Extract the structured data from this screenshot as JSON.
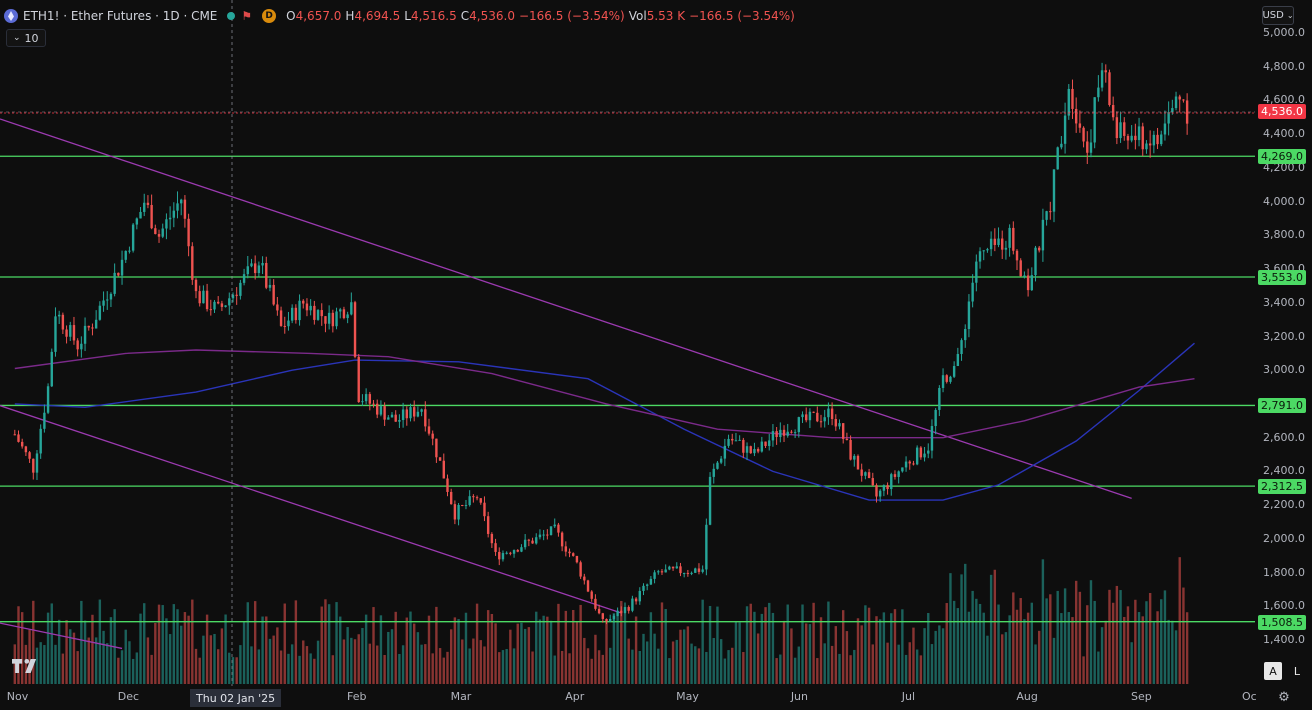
{
  "header": {
    "symbol_title": "ETH1! · Ether Futures · 1D · CME",
    "flag_label": "⚑",
    "d_badge": "D",
    "ohlc": [
      {
        "k": "O",
        "v": "4,657.0"
      },
      {
        "k": "H",
        "v": "4,694.5"
      },
      {
        "k": "L",
        "v": "4,516.5"
      },
      {
        "k": "C",
        "v": "4,536.0"
      },
      {
        "k": "",
        "v": "−166.5 (−3.54%)"
      },
      {
        "k": "Vol",
        "v": "5.53 K"
      },
      {
        "k": "",
        "v": "−166.5 (−3.54%)"
      }
    ],
    "volume_pill": "10",
    "currency": "USD"
  },
  "colors": {
    "up": "#26a69a",
    "down": "#ef5350",
    "support_line": "#4cd964",
    "trend_line": "#9b3ab0",
    "ma_fast": "#2a34b8",
    "ma_slow": "#7b2a8a",
    "last_price": "#f23645"
  },
  "price_axis": {
    "labels": [
      "5,000.0",
      "4,800.0",
      "4,600.0",
      "4,400.0",
      "4,200.0",
      "4,000.0",
      "3,800.0",
      "3,600.0",
      "3,400.0",
      "3,200.0",
      "3,000.0",
      "2,800.0",
      "2,600.0",
      "2,400.0",
      "2,200.0",
      "2,000.0",
      "1,800.0",
      "1,600.0",
      "1,400.0"
    ],
    "range": [
      1280,
      5010
    ]
  },
  "support_levels": [
    "4,269.0",
    "3,553.0",
    "2,791.0",
    "2,312.5",
    "1,508.5"
  ],
  "last_price_label": "4,536.0",
  "time_axis": [
    "Nov",
    "Dec",
    "Feb",
    "Mar",
    "Apr",
    "May",
    "Jun",
    "Jul",
    "Aug",
    "Sep",
    "Oc"
  ],
  "crosshair_date": "Thu 02 Jan '25",
  "buttons": {
    "auto": "A",
    "log": "L",
    "settings_icon": "gear-icon"
  },
  "chart_data": {
    "type": "candlestick",
    "x_range": [
      "2024-11",
      "2025-10"
    ],
    "waypoints": [
      [
        "2024-11-01",
        2620
      ],
      [
        "2024-11-06",
        2420
      ],
      [
        "2024-11-10",
        2900
      ],
      [
        "2024-11-12",
        3350
      ],
      [
        "2024-11-18",
        3150
      ],
      [
        "2024-11-22",
        3280
      ],
      [
        "2024-11-30",
        3650
      ],
      [
        "2024-12-06",
        4000
      ],
      [
        "2024-12-10",
        3800
      ],
      [
        "2024-12-16",
        4020
      ],
      [
        "2024-12-20",
        3450
      ],
      [
        "2024-12-26",
        3350
      ],
      [
        "2025-01-06",
        3650
      ],
      [
        "2025-01-12",
        3250
      ],
      [
        "2025-01-18",
        3400
      ],
      [
        "2025-01-25",
        3300
      ],
      [
        "2025-01-31",
        3400
      ],
      [
        "2025-02-02",
        2850
      ],
      [
        "2025-02-12",
        2700
      ],
      [
        "2025-02-19",
        2780
      ],
      [
        "2025-02-24",
        2450
      ],
      [
        "2025-02-28",
        2150
      ],
      [
        "2025-03-06",
        2250
      ],
      [
        "2025-03-11",
        1900
      ],
      [
        "2025-03-20",
        1980
      ],
      [
        "2025-03-27",
        2050
      ],
      [
        "2025-04-02",
        1850
      ],
      [
        "2025-04-09",
        1500
      ],
      [
        "2025-04-16",
        1600
      ],
      [
        "2025-04-24",
        1800
      ],
      [
        "2025-05-06",
        1820
      ],
      [
        "2025-05-08",
        2350
      ],
      [
        "2025-05-13",
        2600
      ],
      [
        "2025-05-20",
        2500
      ],
      [
        "2025-05-27",
        2650
      ],
      [
        "2025-06-10",
        2750
      ],
      [
        "2025-06-15",
        2500
      ],
      [
        "2025-06-22",
        2250
      ],
      [
        "2025-06-30",
        2450
      ],
      [
        "2025-07-06",
        2550
      ],
      [
        "2025-07-10",
        2950
      ],
      [
        "2025-07-14",
        3050
      ],
      [
        "2025-07-19",
        3650
      ],
      [
        "2025-07-28",
        3800
      ],
      [
        "2025-08-02",
        3500
      ],
      [
        "2025-08-08",
        4000
      ],
      [
        "2025-08-13",
        4700
      ],
      [
        "2025-08-18",
        4300
      ],
      [
        "2025-08-22",
        4800
      ],
      [
        "2025-08-26",
        4400
      ],
      [
        "2025-09-06",
        4350
      ],
      [
        "2025-09-12",
        4650
      ],
      [
        "2025-09-14",
        4536
      ]
    ],
    "ma_fast_waypoints": [
      [
        "2024-11-01",
        2800
      ],
      [
        "2024-11-20",
        2780
      ],
      [
        "2024-12-20",
        2870
      ],
      [
        "2025-01-15",
        3000
      ],
      [
        "2025-02-01",
        3060
      ],
      [
        "2025-03-01",
        3050
      ],
      [
        "2025-04-05",
        2950
      ],
      [
        "2025-05-01",
        2650
      ],
      [
        "2025-05-25",
        2400
      ],
      [
        "2025-06-20",
        2230
      ],
      [
        "2025-07-10",
        2230
      ],
      [
        "2025-07-25",
        2320
      ],
      [
        "2025-08-15",
        2580
      ],
      [
        "2025-09-01",
        2880
      ],
      [
        "2025-09-16",
        3160
      ]
    ],
    "ma_slow_waypoints": [
      [
        "2024-11-01",
        3010
      ],
      [
        "2024-12-01",
        3100
      ],
      [
        "2024-12-20",
        3120
      ],
      [
        "2025-01-20",
        3100
      ],
      [
        "2025-02-10",
        3080
      ],
      [
        "2025-03-10",
        2980
      ],
      [
        "2025-04-10",
        2800
      ],
      [
        "2025-05-10",
        2650
      ],
      [
        "2025-06-10",
        2600
      ],
      [
        "2025-07-10",
        2600
      ],
      [
        "2025-08-01",
        2700
      ],
      [
        "2025-09-01",
        2900
      ],
      [
        "2025-09-16",
        2950
      ]
    ],
    "trend_lines": [
      [
        [
          "2024-10-28",
          4490
        ],
        [
          "2025-08-30",
          2240
        ]
      ],
      [
        [
          "2024-10-28",
          2790
        ],
        [
          "2025-04-14",
          1560
        ]
      ],
      [
        [
          "2024-10-28",
          1500
        ],
        [
          "2024-11-30",
          1350
        ]
      ]
    ],
    "volume_scale_note": "relative bars"
  }
}
